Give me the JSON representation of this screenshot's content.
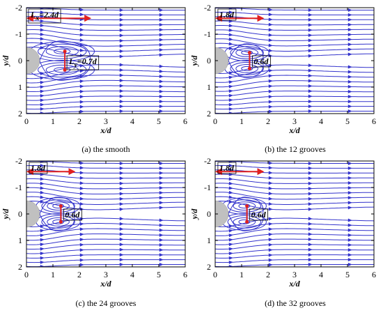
{
  "chart_data": [
    {
      "type": "streamline",
      "caption": "(a) the smooth",
      "xlabel": "x/d",
      "ylabel": "y/d",
      "xlim": [
        0,
        6
      ],
      "ylim": [
        -2,
        2
      ],
      "y_inverted": true,
      "xticks": [
        "0",
        "1",
        "2",
        "3",
        "4",
        "5",
        "6"
      ],
      "yticks": [
        "-2",
        "-1",
        "0",
        "1",
        "2"
      ],
      "recirculation": {
        "Lx": 2.4,
        "Ly": 0.7,
        "vortex_center_x": 1.45
      },
      "annotations": {
        "lx_prefix": "L",
        "lx_sub": "x",
        "lx_value": "=2.4",
        "ly_prefix": "L",
        "ly_sub": "y",
        "ly_value": "=0.7",
        "unit": "d"
      }
    },
    {
      "type": "streamline",
      "caption": "(b) the 12 grooves",
      "xlabel": "x/d",
      "ylabel": "y/d",
      "xlim": [
        0,
        6
      ],
      "ylim": [
        -2,
        2
      ],
      "y_inverted": true,
      "xticks": [
        "0",
        "1",
        "2",
        "3",
        "4",
        "5",
        "6"
      ],
      "yticks": [
        "-2",
        "-1",
        "0",
        "1",
        "2"
      ],
      "recirculation": {
        "Lx": 1.8,
        "Ly": 0.6,
        "vortex_center_x": 1.3
      },
      "annotations": {
        "lx_value": "1.8",
        "ly_value": "0.6",
        "unit": "d"
      }
    },
    {
      "type": "streamline",
      "caption": "(c) the 24 grooves",
      "xlabel": "x/d",
      "ylabel": "y/d",
      "xlim": [
        0,
        6
      ],
      "ylim": [
        -2,
        2
      ],
      "y_inverted": true,
      "xticks": [
        "0",
        "1",
        "2",
        "3",
        "4",
        "5",
        "6"
      ],
      "yticks": [
        "-2",
        "-1",
        "0",
        "1",
        "2"
      ],
      "recirculation": {
        "Lx": 1.8,
        "Ly": 0.6,
        "vortex_center_x": 1.3
      },
      "annotations": {
        "lx_value": "1.8",
        "ly_value": "0.6",
        "unit": "d"
      }
    },
    {
      "type": "streamline",
      "caption": "(d) the 32 grooves",
      "xlabel": "x/d",
      "ylabel": "y/d",
      "xlim": [
        0,
        6
      ],
      "ylim": [
        -2,
        2
      ],
      "y_inverted": true,
      "xticks": [
        "0",
        "1",
        "2",
        "3",
        "4",
        "5",
        "6"
      ],
      "yticks": [
        "-2",
        "-1",
        "0",
        "1",
        "2"
      ],
      "recirculation": {
        "Lx": 1.8,
        "Ly": 0.6,
        "vortex_center_x": 1.2
      },
      "annotations": {
        "lx_value": "1.8",
        "ly_value": "0.6",
        "unit": "d"
      }
    }
  ],
  "colors": {
    "streamline": "#3333cc",
    "annotation": "#e02020",
    "cylinder": "#c0c0c0",
    "axis": "#000000"
  }
}
